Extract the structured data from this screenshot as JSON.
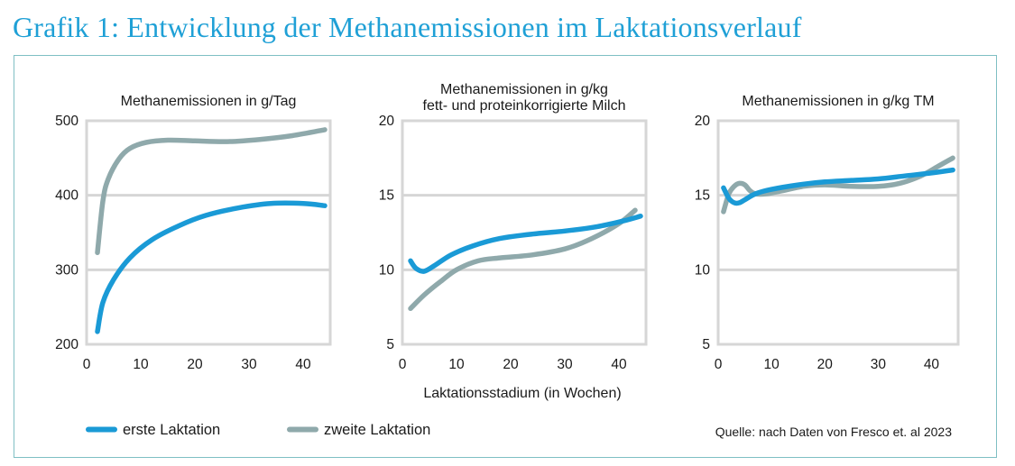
{
  "title": "Grafik 1: Entwicklung der Methanemissionen im Laktationsverlauf",
  "colors": {
    "title": "#1fa0d6",
    "erste": "#1a9ad6",
    "zweite": "#8fa9ab",
    "grid": "#d6d6d6",
    "frame": "#7fbfc4"
  },
  "legend": [
    "erste Laktation",
    "zweite Laktation"
  ],
  "source": "Quelle: nach Daten von Fresco et. al 2023",
  "chart_data": [
    {
      "type": "line",
      "title": "Methanemissionen in g/Tag",
      "xlabel": "",
      "xlim": [
        0,
        45
      ],
      "ylim": [
        200,
        500
      ],
      "xticks": [
        "0",
        "10",
        "20",
        "30",
        "40"
      ],
      "yticks": [
        "200",
        "300",
        "400",
        "500"
      ],
      "series": [
        {
          "name": "erste Laktation",
          "x": [
            2,
            3,
            5,
            8,
            12,
            17,
            22,
            28,
            34,
            40,
            44
          ],
          "y": [
            217,
            256,
            287,
            316,
            340,
            359,
            373,
            383,
            389,
            389,
            386
          ]
        },
        {
          "name": "zweite Laktation",
          "x": [
            2,
            3,
            4,
            6,
            8,
            11,
            15,
            20,
            26,
            32,
            38,
            44
          ],
          "y": [
            323,
            392,
            422,
            449,
            463,
            471,
            474,
            473,
            472,
            475,
            480,
            488
          ]
        }
      ]
    },
    {
      "type": "line",
      "title": "Methanemissionen in g/kg\nfett- und proteinkorrigierte Milch",
      "xlabel": "Laktationsstadium (in Wochen)",
      "xlim": [
        0,
        45
      ],
      "ylim": [
        5,
        20
      ],
      "xticks": [
        "0",
        "10",
        "20",
        "30",
        "40"
      ],
      "yticks": [
        "5",
        "10",
        "15",
        "20"
      ],
      "series": [
        {
          "name": "erste Laktation",
          "x": [
            1.5,
            2.5,
            4,
            6,
            9,
            13,
            18,
            24,
            30,
            36,
            41,
            44
          ],
          "y": [
            10.6,
            10.1,
            9.9,
            10.3,
            11.0,
            11.6,
            12.1,
            12.4,
            12.6,
            12.9,
            13.3,
            13.6
          ]
        },
        {
          "name": "zweite Laktation",
          "x": [
            1.5,
            4,
            7,
            10,
            14,
            18,
            24,
            30,
            35,
            40,
            43
          ],
          "y": [
            7.4,
            8.3,
            9.2,
            10.0,
            10.6,
            10.8,
            11.0,
            11.4,
            12.1,
            13.1,
            14.0
          ]
        }
      ]
    },
    {
      "type": "line",
      "title": "Methanemissionen in g/kg TM",
      "xlabel": "",
      "xlim": [
        0,
        45
      ],
      "ylim": [
        5,
        20
      ],
      "xticks": [
        "0",
        "10",
        "20",
        "30",
        "40"
      ],
      "yticks": [
        "5",
        "10",
        "15",
        "20"
      ],
      "series": [
        {
          "name": "erste Laktation",
          "x": [
            1,
            2,
            3,
            4,
            5,
            7,
            10,
            15,
            20,
            25,
            30,
            35,
            40,
            44
          ],
          "y": [
            15.5,
            14.8,
            14.5,
            14.5,
            14.7,
            15.1,
            15.4,
            15.7,
            15.9,
            16.0,
            16.1,
            16.3,
            16.5,
            16.7
          ]
        },
        {
          "name": "zweite Laktation",
          "x": [
            1,
            2,
            3,
            4,
            5,
            6,
            7,
            9,
            12,
            16,
            20,
            25,
            30,
            34,
            38,
            41,
            44
          ],
          "y": [
            13.9,
            15.1,
            15.6,
            15.8,
            15.7,
            15.3,
            15.1,
            15.1,
            15.3,
            15.6,
            15.7,
            15.6,
            15.6,
            15.8,
            16.3,
            16.9,
            17.5
          ]
        }
      ]
    }
  ]
}
